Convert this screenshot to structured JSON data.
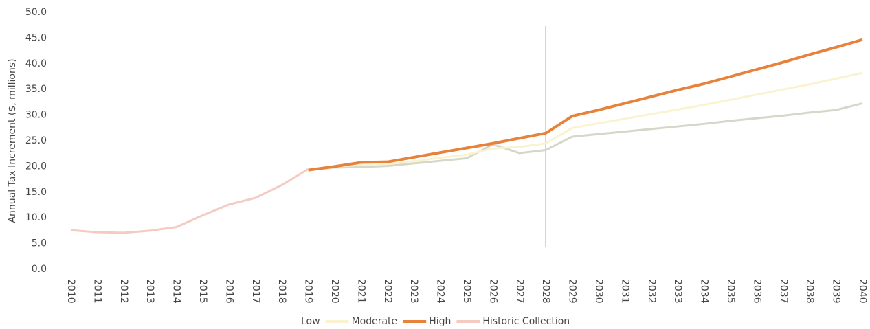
{
  "chart_data": {
    "type": "line",
    "y_label": "Annual Tax Increment ($, millions)",
    "categories": [
      "2010",
      "2011",
      "2012",
      "2013",
      "2014",
      "2015",
      "2016",
      "2017",
      "2018",
      "2019",
      "2020",
      "2021",
      "2022",
      "2023",
      "2024",
      "2025",
      "2026",
      "2027",
      "2028",
      "2029",
      "2030",
      "2031",
      "2032",
      "2033",
      "2034",
      "2035",
      "2036",
      "2037",
      "2038",
      "2039",
      "2040"
    ],
    "series": [
      {
        "name": "Low",
        "color": "#d5d7c9",
        "values": [
          null,
          null,
          null,
          null,
          null,
          null,
          null,
          null,
          null,
          19.3,
          19.8,
          19.9,
          20.1,
          20.6,
          21.1,
          21.6,
          24.3,
          22.6,
          23.2,
          25.8,
          26.3,
          26.8,
          27.3,
          27.8,
          28.3,
          28.9,
          29.4,
          29.9,
          30.5,
          31.0,
          32.3
        ]
      },
      {
        "name": "Moderate",
        "color": "#fbf2cf",
        "values": [
          null,
          null,
          null,
          null,
          null,
          null,
          null,
          null,
          null,
          19.3,
          20.0,
          20.3,
          20.5,
          21.0,
          21.7,
          22.3,
          23.5,
          23.8,
          24.5,
          27.5,
          28.4,
          29.3,
          30.2,
          31.1,
          32.0,
          33.0,
          34.0,
          35.0,
          36.0,
          37.1,
          38.2
        ]
      },
      {
        "name": "High",
        "color": "#e8823a",
        "values": [
          null,
          null,
          null,
          null,
          null,
          null,
          null,
          null,
          null,
          19.3,
          20.0,
          20.8,
          20.9,
          21.8,
          22.7,
          23.6,
          24.5,
          25.5,
          26.5,
          29.8,
          31.0,
          32.3,
          33.6,
          34.9,
          36.1,
          37.5,
          38.9,
          40.3,
          41.8,
          43.2,
          44.7
        ]
      },
      {
        "name": "Historic Collection",
        "color": "#f4cac1",
        "values": [
          7.6,
          7.2,
          7.1,
          7.5,
          8.2,
          10.5,
          12.6,
          13.9,
          16.4,
          19.5,
          null,
          null,
          null,
          null,
          null,
          null,
          null,
          null,
          null,
          null,
          null,
          null,
          null,
          null,
          null,
          null,
          null,
          null,
          null,
          null,
          null
        ]
      }
    ],
    "vline": "2028",
    "ylim": [
      0,
      50
    ],
    "yticks": [
      {
        "value": 0,
        "label": "0.0"
      },
      {
        "value": 5,
        "label": "5.0"
      },
      {
        "value": 10,
        "label": "10.0"
      },
      {
        "value": 15,
        "label": "15.0"
      },
      {
        "value": 20,
        "label": "20.0"
      },
      {
        "value": 25,
        "label": "25.0"
      },
      {
        "value": 30,
        "label": "30.0"
      },
      {
        "value": 35,
        "label": "35.0"
      },
      {
        "value": 40,
        "label": "40.0"
      },
      {
        "value": 45,
        "label": "45.0"
      },
      {
        "value": 50,
        "label": "50.0"
      }
    ],
    "legend": "bottom"
  }
}
